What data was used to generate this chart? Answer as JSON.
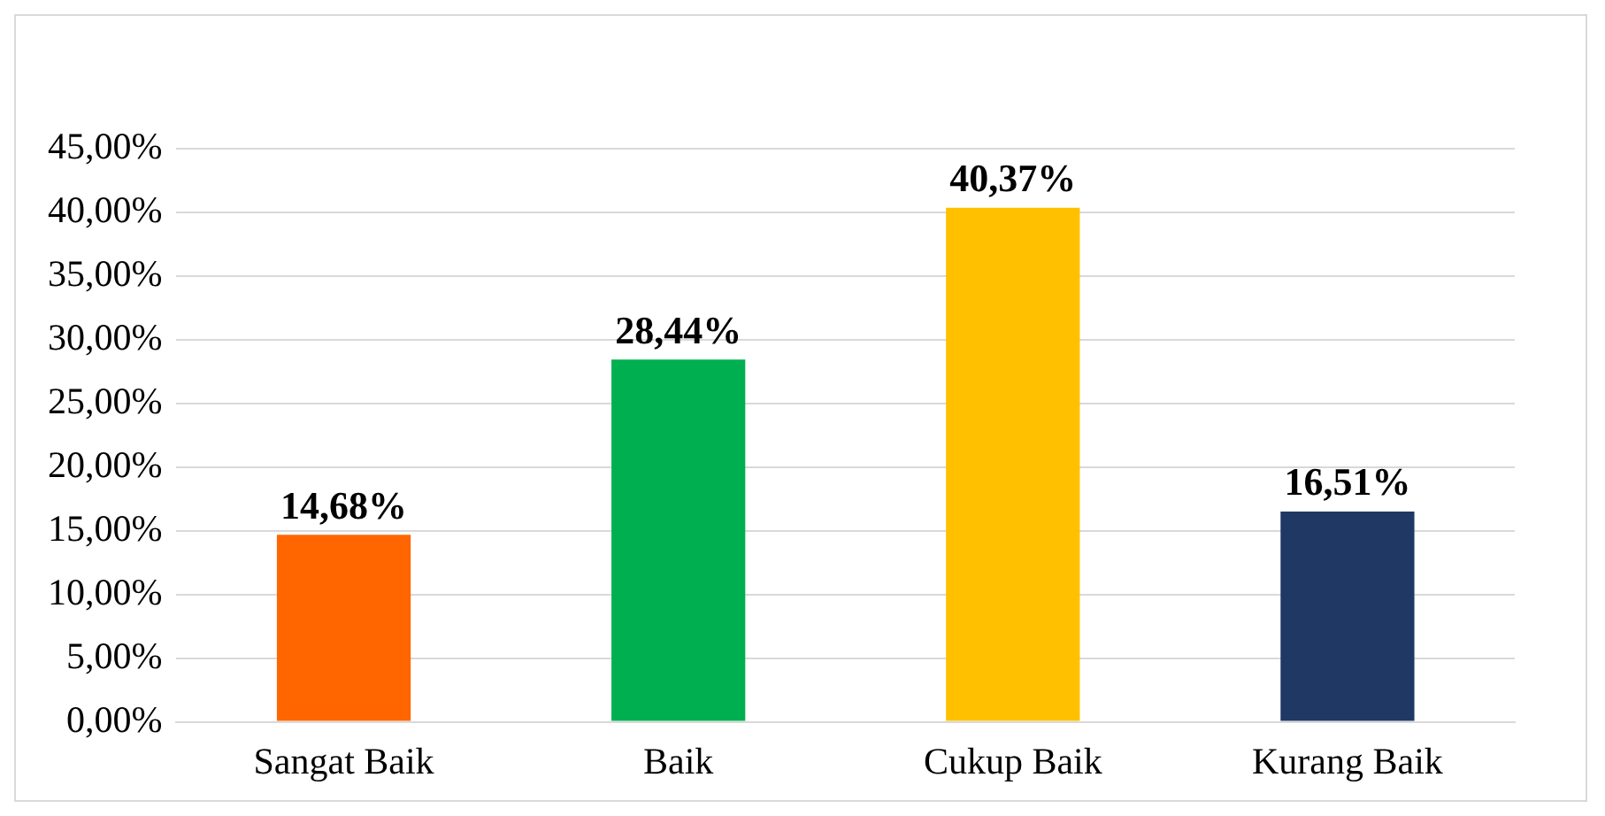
{
  "chart_data": {
    "type": "bar",
    "categories": [
      "Sangat Baik",
      "Baik",
      "Cukup Baik",
      "Kurang Baik"
    ],
    "values": [
      14.68,
      28.44,
      40.37,
      16.51
    ],
    "colors": [
      "#ff6600",
      "#00b050",
      "#ffc000",
      "#1f3864"
    ],
    "value_labels": [
      "14,68%",
      "28,44%",
      "40,37%",
      "16,51%"
    ],
    "ylim": [
      0,
      45
    ],
    "yticks": [
      {
        "value": 0,
        "label": "0,00%"
      },
      {
        "value": 5,
        "label": "5,00%"
      },
      {
        "value": 10,
        "label": "10,00%"
      },
      {
        "value": 15,
        "label": "15,00%"
      },
      {
        "value": 20,
        "label": "20,00%"
      },
      {
        "value": 25,
        "label": "25,00%"
      },
      {
        "value": 30,
        "label": "30,00%"
      },
      {
        "value": 35,
        "label": "35,00%"
      },
      {
        "value": 40,
        "label": "40,00%"
      },
      {
        "value": 45,
        "label": "45,00%"
      }
    ],
    "grid": "y",
    "legend": false
  }
}
